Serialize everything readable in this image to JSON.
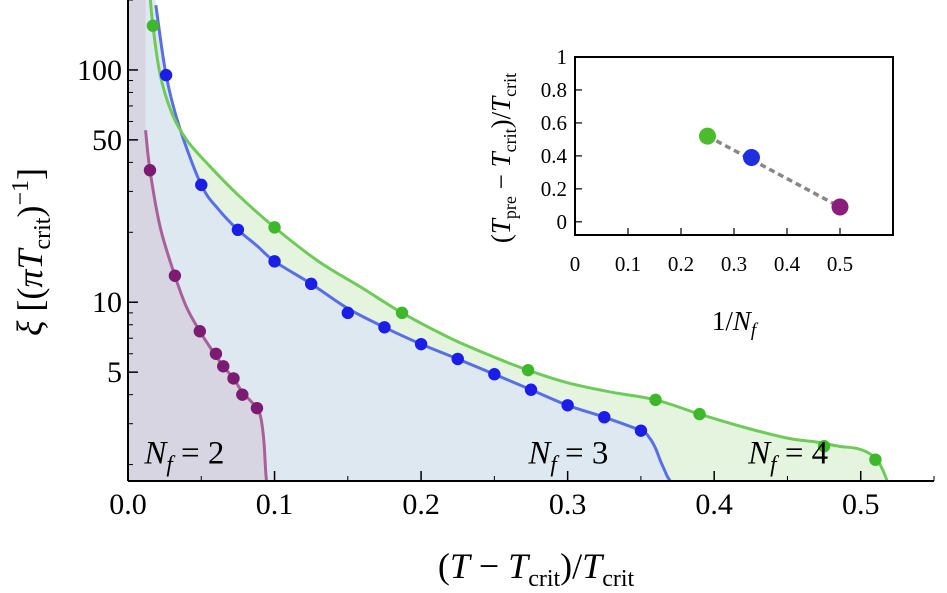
{
  "chart_data": [
    {
      "type": "line",
      "xlabel": "(T − T_crit)/T_crit",
      "ylabel": "ξ [(πT_crit)^−1]",
      "y_scale": "log",
      "xlim": [
        0,
        0.55
      ],
      "ylim": [
        1.7,
        200
      ],
      "x_ticks": [
        0.0,
        0.1,
        0.2,
        0.3,
        0.4,
        0.5
      ],
      "x_tick_labels": [
        "0.0",
        "0.1",
        "0.2",
        "0.3",
        "0.4",
        "0.5"
      ],
      "y_ticks": [
        5,
        10,
        50,
        100
      ],
      "y_tick_labels": [
        "5",
        "10",
        "50",
        "100"
      ],
      "series": [
        {
          "name": "N_f = 2",
          "color": "#a8609a",
          "fill": "#d8d5e2",
          "points": {
            "x": [
              0.015,
              0.032,
              0.049,
              0.06,
              0.065,
              0.072,
              0.078,
              0.088
            ],
            "y": [
              37,
              13,
              7.5,
              6.0,
              5.3,
              4.7,
              4.0,
              3.5
            ]
          },
          "curve": {
            "x": [
              0.012,
              0.015,
              0.022,
              0.032,
              0.04,
              0.049,
              0.056,
              0.065,
              0.072,
              0.078,
              0.083,
              0.088,
              0.09,
              0.091,
              0.092,
              0.093,
              0.0935,
              0.094,
              0.0945
            ],
            "y": [
              55,
              37,
              21,
              13,
              9.5,
              7.5,
              6.4,
              5.3,
              4.7,
              4.1,
              3.8,
              3.5,
              3.3,
              3.1,
              2.8,
              2.4,
              2.1,
              1.85,
              1.7
            ]
          }
        },
        {
          "name": "N_f = 3",
          "color": "#5a6ee8",
          "fill": "#dde8f1",
          "points": {
            "x": [
              0.026,
              0.05,
              0.075,
              0.1,
              0.125,
              0.15,
              0.175,
              0.2,
              0.225,
              0.25,
              0.275,
              0.3,
              0.325,
              0.35
            ],
            "y": [
              95,
              32,
              20.5,
              15,
              12,
              9,
              7.8,
              6.6,
              5.7,
              4.9,
              4.2,
              3.6,
              3.2,
              2.8
            ]
          },
          "curve": {
            "x": [
              0.019,
              0.026,
              0.035,
              0.05,
              0.062,
              0.075,
              0.088,
              0.1,
              0.125,
              0.15,
              0.175,
              0.2,
              0.225,
              0.25,
              0.275,
              0.3,
              0.325,
              0.35,
              0.356,
              0.36,
              0.363,
              0.366,
              0.368,
              0.37
            ],
            "y": [
              190,
              95,
              57,
              32,
              25,
              20.5,
              17.5,
              15,
              12,
              9.4,
              7.8,
              6.6,
              5.7,
              4.9,
              4.2,
              3.6,
              3.2,
              2.8,
              2.6,
              2.35,
              2.1,
              1.9,
              1.78,
              1.7
            ]
          }
        },
        {
          "name": "N_f = 4",
          "color": "#6ecb5a",
          "fill": "#e5f4df",
          "points": {
            "x": [
              0.017,
              0.1,
              0.187,
              0.273,
              0.36,
              0.39,
              0.475,
              0.51
            ],
            "y": [
              155,
              21,
              9,
              5.1,
              3.8,
              3.3,
              2.4,
              2.1
            ]
          },
          "curve": {
            "x": [
              0.015,
              0.017,
              0.022,
              0.03,
              0.04,
              0.055,
              0.075,
              0.1,
              0.13,
              0.16,
              0.187,
              0.22,
              0.25,
              0.273,
              0.3,
              0.33,
              0.36,
              0.39,
              0.42,
              0.45,
              0.47,
              0.485,
              0.497,
              0.505,
              0.511,
              0.515,
              0.518
            ],
            "y": [
              210,
              155,
              95,
              65,
              50,
              39,
              29,
              21,
              15,
              11.5,
              9.0,
              7.0,
              5.8,
              5.1,
              4.5,
              4.1,
              3.8,
              3.3,
              2.9,
              2.6,
              2.5,
              2.4,
              2.35,
              2.25,
              2.1,
              1.9,
              1.7
            ]
          }
        }
      ],
      "region_labels": [
        {
          "text": "N_f = 2",
          "x": 0.003,
          "y": 2.1
        },
        {
          "text": "N_f = 3",
          "x": 0.265,
          "y": 2.1
        },
        {
          "text": "N_f = 4",
          "x": 0.415,
          "y": 2.1
        }
      ]
    },
    {
      "type": "scatter",
      "xlabel": "1/N_f",
      "ylabel": "(T_pre − T_crit)/T_crit",
      "xlim": [
        0,
        0.6
      ],
      "ylim": [
        -0.08,
        1.0
      ],
      "x_ticks": [
        0,
        0.1,
        0.2,
        0.3,
        0.4,
        0.5
      ],
      "x_tick_labels": [
        "0",
        "0.1",
        "0.2",
        "0.3",
        "0.4",
        "0.5"
      ],
      "y_ticks": [
        0,
        0.2,
        0.4,
        0.6,
        0.8,
        1
      ],
      "y_tick_labels": [
        "0",
        "0.2",
        "0.4",
        "0.6",
        "0.8",
        "1"
      ],
      "points": [
        {
          "x": 0.25,
          "y": 0.52,
          "color": "#4dbb2e"
        },
        {
          "x": 0.333,
          "y": 0.39,
          "color": "#1f2ee0"
        },
        {
          "x": 0.5,
          "y": 0.09,
          "color": "#8b1e7a"
        }
      ],
      "fit_line": {
        "x": [
          0.25,
          0.5
        ],
        "y": [
          0.52,
          0.09
        ],
        "color": "#888888",
        "style": "dashed"
      }
    }
  ],
  "colors": {
    "nf2_dot": "#7d1a72",
    "nf3_dot": "#1a1ee6",
    "nf4_dot": "#3db82a"
  }
}
